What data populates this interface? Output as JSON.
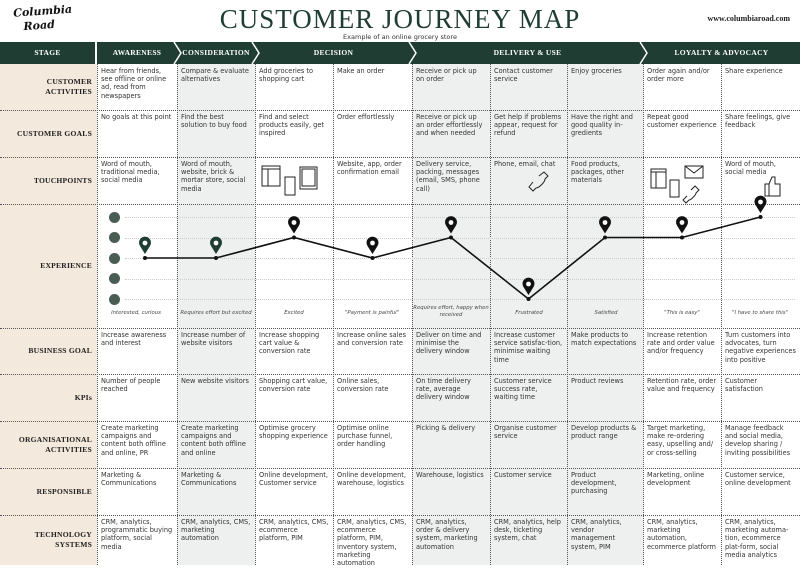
{
  "header": {
    "logo": "Columbia Road",
    "title": "CUSTOMER JOURNEY MAP",
    "subtitle": "Example of an online grocery store",
    "url": "www.columbiaroad.com"
  },
  "colors": {
    "dark_green": "#1f3d33",
    "label_bg": "#f3e9dc",
    "shade_bg": "#eef0ef",
    "pin_green": "#1f3d33",
    "pin_black": "#111111"
  },
  "stages": [
    {
      "label": "STAGE"
    },
    {
      "label": "AWARENESS"
    },
    {
      "label": "CONSIDERATION"
    },
    {
      "label": "DECISION"
    },
    {
      "label": "DELIVERY & USE"
    },
    {
      "label": "LOYALTY  & ADVOCACY"
    }
  ],
  "rows": [
    {
      "label": "CUSTOMER ACTIVITIES",
      "cells": [
        "Hear from friends, see offline or online ad, read from newspapers",
        "Compare & evaluate alternatives",
        "Add groceries to shopping cart",
        "Make an order",
        "Receive or pick up on order",
        "Contact customer service",
        "Enjoy groceries",
        "Order again and/or order more",
        "Share experience"
      ]
    },
    {
      "label": "CUSTOMER GOALS",
      "cells": [
        "No goals at this point",
        "Find the best solution to buy food",
        "Find and select products easily, get inspired",
        "Order effortlessly",
        "Receive or pick up an order effortlessly and when needed",
        "Get help if problems appear, request for refund",
        "Have the right and good quality in-gredients",
        "Repeat good customer experience",
        "Share feelings, give feedback"
      ]
    },
    {
      "label": "TOUCHPOINTS",
      "cells": [
        "Word of mouth, traditional media, social media",
        "Word of mouth, website, brick & mortar store, social media",
        "",
        "Website, app, order confirmation email",
        "Delivery service, packing, messages (email, SMS, phone call)",
        "Phone, email, chat",
        "Food products, packages, other materials",
        "",
        "Word of mouth, social media"
      ],
      "icons": [
        "",
        "",
        "devices-icon",
        "",
        "",
        "phone-icon",
        "",
        "devices-mail-phone-icon",
        "thumbs-up-icon"
      ]
    },
    {
      "label": "EXPERIENCE",
      "experience": {
        "scale": [
          "very-happy-face-icon",
          "happy-face-icon",
          "neutral-face-icon",
          "unhappy-face-icon",
          "sad-face-icon"
        ],
        "levels": [
          3,
          3,
          4,
          3,
          4,
          1,
          4,
          4,
          5
        ],
        "level_max": 5,
        "notes": [
          "Interested, curious",
          "Requires effort but excited",
          "Excited",
          "\"Payment is painful\"",
          "Requires effort, happy when received",
          "Frustrated",
          "Satisfied",
          "\"This is easy\"",
          "\"I have to share this\""
        ]
      }
    },
    {
      "label": "BUSINESS GOAL",
      "cells": [
        "Increase awareness and interest",
        "Increase number of website visitors",
        "Increase shopping cart value & conversion rate",
        "Increase online sales and conversion rate",
        "Deliver on time and minimise the delivery window",
        "Increase customer service satisfac-tion, minimise waiting time",
        "Make products to match expectations",
        "Increase retention rate and order value and/or frequency",
        "Turn customers into advocates, turn negative experiences into positive"
      ]
    },
    {
      "label": "KPIs",
      "cells": [
        "Number of people reached",
        "New website visitors",
        "Shopping cart value, conversion rate",
        "Online sales, conversion rate",
        "On time delivery rate, average delivery window",
        "Customer service success rate, waiting time",
        "Product reviews",
        "Retention rate, order value and frequency",
        "Customer satisfaction"
      ]
    },
    {
      "label": "ORGANISATIONAL ACTIVITIES",
      "cells": [
        "Create marketing campaigns and content both offline and online, PR",
        "Create marketing campaigns and content both offline and online",
        "Optimise grocery shopping experience",
        "Optimise online purchase funnel, order handling",
        "Picking & delivery",
        "Organise customer service",
        "Develop products & product range",
        "Target marketing, make re-ordering easy, upselling and/ or cross-selling",
        "Manage feedback and social media, develop sharing / inviting possibilities"
      ]
    },
    {
      "label": "RESPONSIBLE",
      "cells": [
        "Marketing & Communications",
        "Marketing & Communications",
        "Online development, Customer service",
        "Online development, warehouse, logistics",
        "Warehouse, logistics",
        "Customer service",
        "Product development, purchasing",
        "Marketing, online development",
        "Customer service, online development"
      ]
    },
    {
      "label": "TECHNOLOGY SYSTEMS",
      "cells": [
        "CRM, analytics, programmatic buying platform, social media",
        "CRM, analytics, CMS, marketing automation",
        "CRM, analytics, CMS, ecommerce platform, PIM",
        "CRM, analytics, CMS, ecommerce platform, PIM, inventory system, marketing automation",
        "CRM, analytics, order & delivery system, marketing automation",
        "CRM, analytics, help desk, ticketing system, chat",
        "CRM, analytics, vendor management system, PIM",
        "CRM, analytics, marketing automation, ecommerce platform",
        "CRM, analytics, marketing automa-tion, ecommerce plat-form, social media analytics"
      ]
    }
  ]
}
